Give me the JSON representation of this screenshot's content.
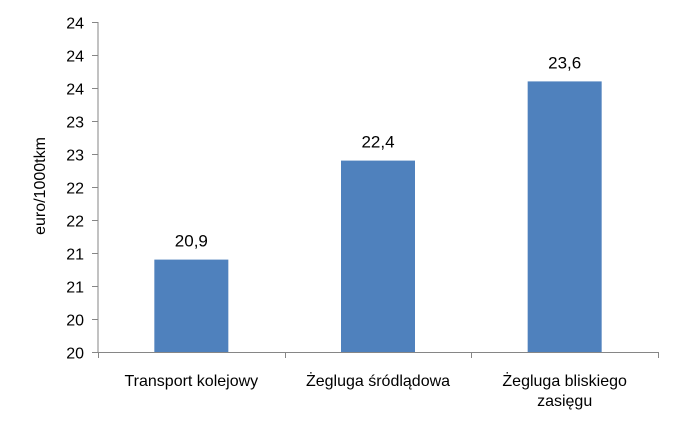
{
  "chart_data": {
    "type": "bar",
    "ylabel": "euro/1000tkm",
    "xlabel": "",
    "ylim": [
      19.5,
      24.5
    ],
    "ytick_values": [
      19.5,
      20.0,
      20.5,
      21.0,
      21.5,
      22.0,
      22.5,
      23.0,
      23.5,
      24.0,
      24.5
    ],
    "ytick_labels": [
      "20",
      "20",
      "21",
      "21",
      "22",
      "22",
      "23",
      "23",
      "24",
      "24",
      "24"
    ],
    "categories": [
      [
        "Transport kolejowy"
      ],
      [
        "Żegluga śródlądowa"
      ],
      [
        "Żegluga bliskiego",
        "zasięgu"
      ]
    ],
    "values": [
      20.9,
      22.4,
      23.6
    ],
    "value_labels": [
      "20,9",
      "22,4",
      "23,6"
    ],
    "bar_color": "#4F81BD",
    "axis_color": "#868686",
    "grid": false,
    "legend": false
  }
}
